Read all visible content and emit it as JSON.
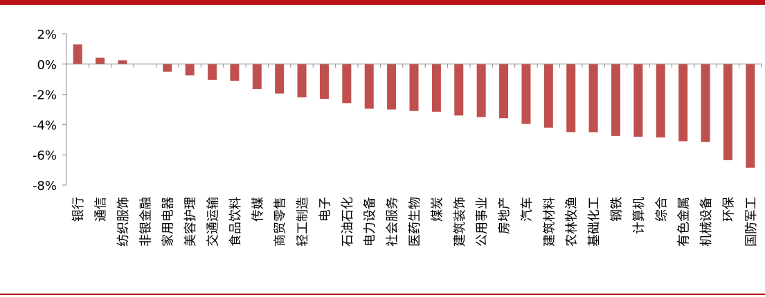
{
  "colors": {
    "bar": "#c0504d",
    "rule": "#b8141a",
    "axis": "#888888"
  },
  "chart_data": {
    "type": "bar",
    "categories": [
      "银行",
      "通信",
      "纺织服饰",
      "非银金融",
      "家用电器",
      "美容护理",
      "交通运输",
      "食品饮料",
      "传媒",
      "商贸零售",
      "轻工制造",
      "电子",
      "石油石化",
      "电力设备",
      "社会服务",
      "医药生物",
      "煤炭",
      "建筑装饰",
      "公用事业",
      "房地产",
      "汽车",
      "建筑材料",
      "农林牧渔",
      "基础化工",
      "钢铁",
      "计算机",
      "综合",
      "有色金属",
      "机械设备",
      "环保",
      "国防军工"
    ],
    "values": [
      1.3,
      0.42,
      0.25,
      0.0,
      -0.5,
      -0.75,
      -1.05,
      -1.1,
      -1.65,
      -1.95,
      -2.2,
      -2.3,
      -2.58,
      -2.95,
      -3.0,
      -3.1,
      -3.15,
      -3.4,
      -3.5,
      -3.58,
      -3.95,
      -4.2,
      -4.5,
      -4.5,
      -4.75,
      -4.8,
      -4.85,
      -5.1,
      -5.15,
      -6.35,
      -6.85
    ],
    "ylim": [
      -8,
      2
    ],
    "yticks": [
      "2%",
      "0%",
      "-2%",
      "-4%",
      "-6%",
      "-8%"
    ],
    "ytick_values": [
      2,
      0,
      -2,
      -4,
      -6,
      -8
    ],
    "grid": false,
    "legend": "none"
  }
}
